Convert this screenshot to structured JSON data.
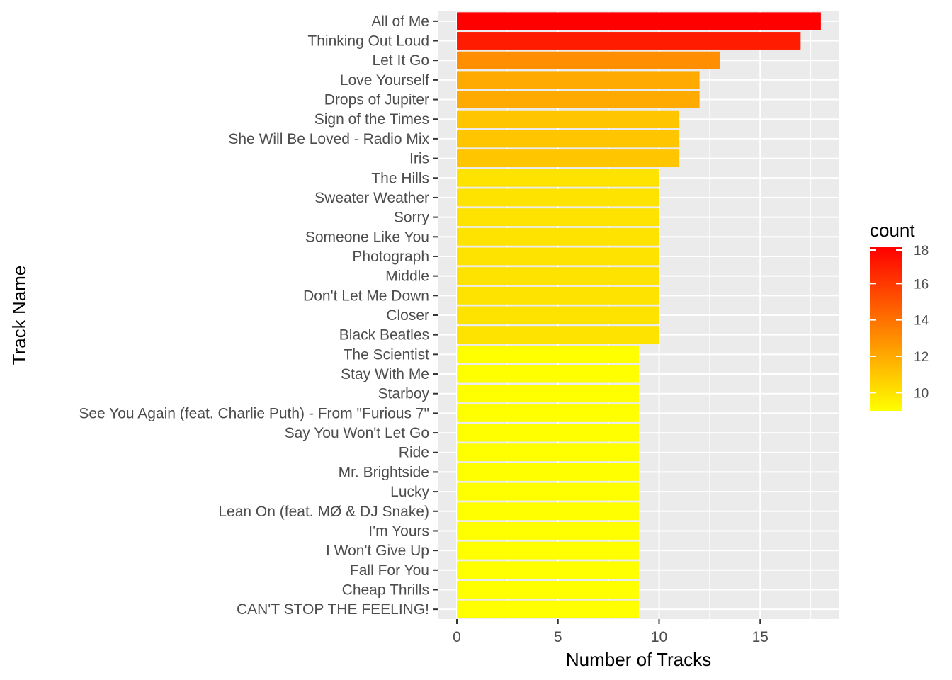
{
  "chart_data": {
    "type": "bar",
    "orientation": "horizontal",
    "xlabel": "Number of Tracks",
    "ylabel": "Track Name",
    "xlim": [
      0,
      18.9
    ],
    "x_ticks": [
      0,
      5,
      10,
      15
    ],
    "grid": true,
    "categories": [
      "All of Me",
      "Thinking Out Loud",
      "Let It Go",
      "Love Yourself",
      "Drops of Jupiter",
      "Sign of the Times",
      "She Will Be Loved - Radio Mix",
      "Iris",
      "The Hills",
      "Sweater Weather",
      "Sorry",
      "Someone Like You",
      "Photograph",
      "Middle",
      "Don't Let Me Down",
      "Closer",
      "Black Beatles",
      "The Scientist",
      "Stay With Me",
      "Starboy",
      "See You Again (feat. Charlie Puth) - From \"Furious 7\"",
      "Say You Won't Let Go",
      "Ride",
      "Mr. Brightside",
      "Lucky",
      "Lean On (feat. MØ & DJ Snake)",
      "I'm Yours",
      "I Won't Give Up",
      "Fall For You",
      "Cheap Thrills",
      "CAN'T STOP THE FEELING!"
    ],
    "values": [
      18,
      17,
      13,
      12,
      12,
      11,
      11,
      11,
      10,
      10,
      10,
      10,
      10,
      10,
      10,
      10,
      10,
      9,
      9,
      9,
      9,
      9,
      9,
      9,
      9,
      9,
      9,
      9,
      9,
      9,
      9
    ],
    "legend": {
      "title": "count",
      "position": "right",
      "ticks": [
        10,
        12,
        14,
        16,
        18
      ],
      "range": [
        9,
        18
      ],
      "colors": {
        "low": "#ffff00",
        "high": "#ff0000"
      }
    }
  }
}
